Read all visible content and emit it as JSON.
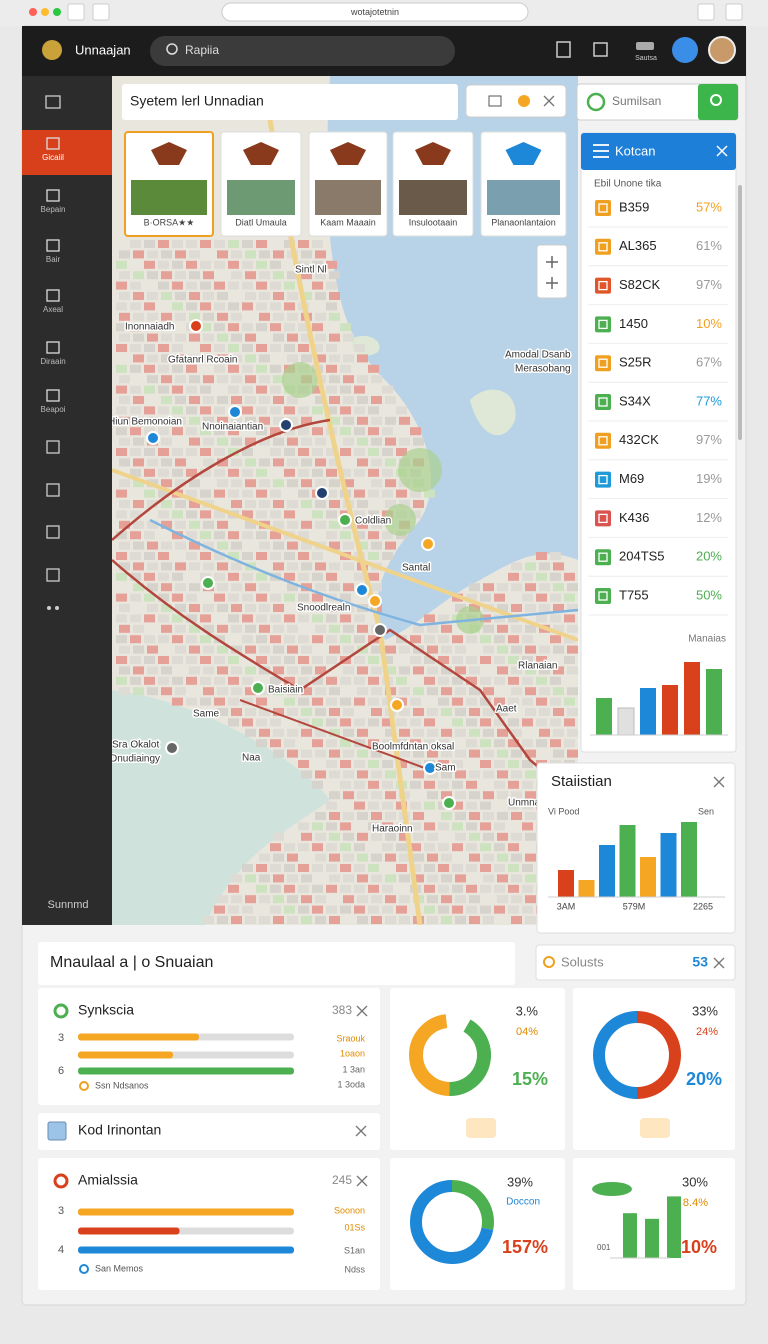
{
  "browser": {
    "url": "wotajotetnin"
  },
  "header": {
    "brand": "Unnaajan",
    "search": "Rapiia",
    "badge": "Sautsa"
  },
  "sidebar": {
    "items": [
      "Gicaiil",
      "Bepain",
      "Bair",
      "Axeal",
      "Diraain",
      "Beapoi"
    ],
    "footer": "Sunnmd"
  },
  "map": {
    "title": "Syetem lerl Unnadian",
    "search": "Sumilsan",
    "cards": [
      "B·ORSA★★",
      "Diatl Umaula",
      "Kaam Maaain",
      "Insulootaain",
      "Planaonlantaion"
    ],
    "labels": [
      "Inonnaiadh",
      "Gfatanrl Rcoain",
      "Hiun Bemonoian",
      "Nnoinaiantian",
      "Sintl Nl",
      "Amodal Dsanb",
      "Merasobang",
      "Coldlian",
      "Santal",
      "Snoodlrealn",
      "Rlanaian",
      "Baisiain",
      "Aaet",
      "Same",
      "Sra Okalot",
      "Dnudiaingy",
      "Naa",
      "Boolmfdntan oksal",
      "Sam",
      "Unmnas",
      "Haraoinn"
    ]
  },
  "list": {
    "title": "Kotcan",
    "subtitle": "Ebil Unone tika",
    "rows": [
      {
        "code": "B359",
        "pct": "57%",
        "color": "#f0a020"
      },
      {
        "code": "AL365",
        "pct": "61%",
        "color": "#f0a020"
      },
      {
        "code": "S82CK",
        "pct": "97%",
        "color": "#e0552a"
      },
      {
        "code": "1450",
        "pct": "10%",
        "color": "#4caf50"
      },
      {
        "code": "S25R",
        "pct": "67%",
        "color": "#f0a020"
      },
      {
        "code": "S34X",
        "pct": "77%",
        "color": "#4caf50"
      },
      {
        "code": "432CK",
        "pct": "97%",
        "color": "#f0a020"
      },
      {
        "code": "M69",
        "pct": "19%",
        "color": "#1e9ad8"
      },
      {
        "code": "K436",
        "pct": "12%",
        "color": "#d9534f"
      },
      {
        "code": "204TS5",
        "pct": "20%",
        "color": "#4caf50"
      },
      {
        "code": "T755",
        "pct": "50%",
        "color": "#4caf50"
      }
    ],
    "chart": {
      "type": "bar",
      "title": "Manaias",
      "ylim": [
        0,
        80
      ],
      "bars": [
        {
          "color": "#4caf50",
          "value": 37
        },
        {
          "color": "#e0e0e0",
          "value": 27
        },
        {
          "color": "#1e88d8",
          "value": 47
        },
        {
          "color": "#d9401c",
          "value": 50
        },
        {
          "color": "#d9401c",
          "value": 73
        },
        {
          "color": "#4caf50",
          "value": 66
        }
      ]
    }
  },
  "stats": {
    "title": "Staiistian",
    "left": "Vi Pood",
    "right": "Sen",
    "chart": {
      "type": "bar",
      "ylim": [
        0,
        80
      ],
      "categories": [
        "3AM",
        "579M",
        "2265"
      ],
      "bars": [
        {
          "color": "#d9401c",
          "value": 27
        },
        {
          "color": "#f5a623",
          "value": 17
        },
        {
          "color": "#1e88d8",
          "value": 52
        },
        {
          "color": "#4caf50",
          "value": 72
        },
        {
          "color": "#f5a623",
          "value": 40
        },
        {
          "color": "#1e88d8",
          "value": 64
        },
        {
          "color": "#4caf50",
          "value": 75
        }
      ]
    }
  },
  "summary": {
    "title": "Mnaulaal a | o Snuaian",
    "tag": "Solusts",
    "count": "53"
  },
  "panels": [
    {
      "title": "Synkscia",
      "count": "383",
      "rows": [
        "3",
        "6"
      ],
      "notes": [
        "Sraouk",
        "1oaon",
        "1 3an",
        "1 3oda"
      ],
      "footer": "Ssn Ndsanos",
      "xlim": [
        0,
        100
      ],
      "bars": [
        {
          "color": "#f5a623",
          "value": 56
        },
        {
          "color": "#f5a623",
          "value": 44
        },
        {
          "color": "#4caf50",
          "value": 100
        }
      ]
    },
    {
      "title": "Kod Irinontan"
    },
    {
      "title": "Amialssia",
      "count": "245",
      "rows": [
        "3",
        "4"
      ],
      "notes": [
        "Soonon",
        "01Ss",
        "S1an",
        "Ndss"
      ],
      "footer": "San Memos",
      "xlim": [
        0,
        100
      ],
      "bars": [
        {
          "color": "#f5a623",
          "value": 100
        },
        {
          "color": "#d9401c",
          "value": 47
        },
        {
          "color": "#1e88d8",
          "value": 100
        }
      ]
    }
  ],
  "donuts": [
    {
      "type": "pie",
      "labels": [
        "3.%",
        "04%",
        "15%"
      ],
      "segments": [
        {
          "color": "#4caf50",
          "value": 42
        },
        {
          "color": "#f5a623",
          "value": 48
        }
      ]
    },
    {
      "type": "pie",
      "labels": [
        "33%",
        "24%",
        "20%"
      ],
      "segments": [
        {
          "color": "#d9401c",
          "value": 50
        },
        {
          "color": "#1e88d8",
          "value": 50
        }
      ]
    },
    {
      "type": "pie",
      "labels": [
        "39%",
        "Doccon",
        "157%"
      ],
      "segments": [
        {
          "color": "#4caf50",
          "value": 28
        },
        {
          "color": "#1e88d8",
          "value": 72
        }
      ]
    }
  ],
  "mini": {
    "type": "bar",
    "labels": [
      "30%",
      "8.4%",
      "10%"
    ],
    "axis": "001",
    "ylim": [
      0,
      50
    ],
    "bars": [
      {
        "color": "#4caf50",
        "value": 32
      },
      {
        "color": "#4caf50",
        "value": 28
      },
      {
        "color": "#4caf50",
        "value": 44
      }
    ]
  }
}
